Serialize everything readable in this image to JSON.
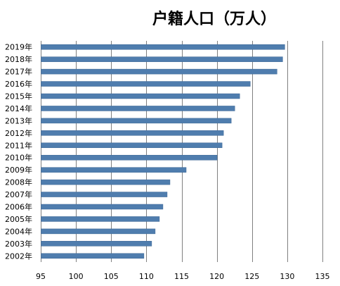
{
  "chart_data": {
    "type": "bar",
    "orientation": "horizontal",
    "title": "户籍人口（万人）",
    "xlabel": "",
    "ylabel": "",
    "xlim": [
      95,
      135
    ],
    "x_ticks": [
      95,
      100,
      105,
      110,
      115,
      120,
      125,
      130,
      135
    ],
    "grid": true,
    "categories": [
      "2019年",
      "2018年",
      "2017年",
      "2016年",
      "2015年",
      "2014年",
      "2013年",
      "2012年",
      "2011年",
      "2010年",
      "2009年",
      "2008年",
      "2007年",
      "2006年",
      "2005年",
      "2004年",
      "2003年",
      "2002年"
    ],
    "values": [
      129.6,
      129.3,
      128.5,
      124.7,
      123.2,
      122.5,
      122.0,
      120.9,
      120.7,
      120.0,
      115.6,
      113.3,
      112.9,
      112.3,
      111.8,
      111.2,
      110.7,
      109.6
    ],
    "bar_color": "#4f7dae"
  }
}
